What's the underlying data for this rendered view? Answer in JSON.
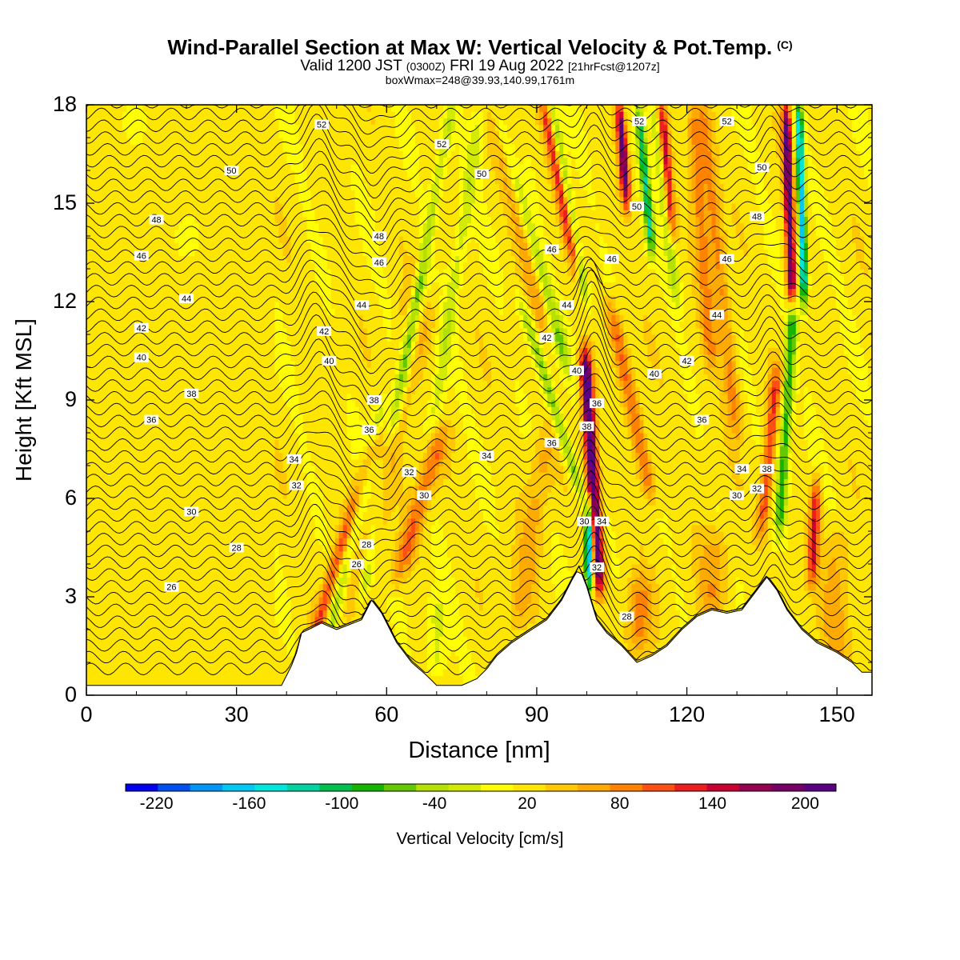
{
  "title": {
    "main": "Wind-Parallel Section at Max W: Vertical Velocity & Pot.Temp.",
    "copyright": "(C)",
    "valid_prefix": "Valid 1200 JST",
    "valid_utc": "(0300Z)",
    "valid_date": "FRI 19 Aug 2022",
    "forecast": "[21hrFcst@1207z]",
    "box_info": "boxWmax=248@39.93,140.99,1761m"
  },
  "colors": {
    "bins": [
      "#0000ee",
      "#0050f0",
      "#0096f5",
      "#00c8f5",
      "#00e6dc",
      "#00d2a0",
      "#00c050",
      "#14b400",
      "#64c800",
      "#b4e100",
      "#d2eb00",
      "#ffff00",
      "#ffe600",
      "#ffc800",
      "#ffaa00",
      "#ff8200",
      "#ff5014",
      "#ee1e1e",
      "#c80032",
      "#960050",
      "#780064",
      "#5a0082"
    ],
    "terrain": "#ffffff"
  },
  "chart_data": {
    "type": "heatmap",
    "xlabel": "Distance [nm]",
    "ylabel": "Height [Kft MSL]",
    "xlim": [
      0,
      157
    ],
    "ylim": [
      0,
      18
    ],
    "xticks": [
      0,
      30,
      60,
      90,
      120,
      150
    ],
    "yticks": [
      0,
      3,
      6,
      9,
      12,
      15,
      18
    ],
    "colorbar": {
      "title": "Vertical Velocity [cm/s]",
      "range": [
        -240,
        220
      ],
      "step": 20,
      "tick_values": [
        -220,
        -160,
        -100,
        -40,
        20,
        80,
        140,
        200
      ],
      "tick_labels": [
        "-220",
        "-160",
        "-100",
        "-40",
        "20",
        "80",
        "140",
        "200"
      ]
    },
    "terrain": {
      "x": [
        0,
        39,
        40,
        41,
        42,
        43,
        47,
        50,
        55,
        57,
        59,
        62,
        65,
        68,
        70,
        72,
        75,
        78,
        80,
        82,
        85,
        88,
        92,
        95,
        97,
        98.5,
        100,
        101,
        102,
        104,
        107,
        110,
        113,
        116,
        119,
        122,
        125,
        128,
        131,
        134,
        136,
        138,
        140,
        143,
        146,
        150,
        153,
        155,
        157
      ],
      "z": [
        0.3,
        0.3,
        0.6,
        0.9,
        1.3,
        1.9,
        2.2,
        2.0,
        2.3,
        2.9,
        2.5,
        1.6,
        1.0,
        0.6,
        0.3,
        0.3,
        0.3,
        0.5,
        0.8,
        1.2,
        1.6,
        1.9,
        2.3,
        2.9,
        3.5,
        3.9,
        3.3,
        2.8,
        2.3,
        1.9,
        1.5,
        1.0,
        1.2,
        1.5,
        2.0,
        2.4,
        2.6,
        2.5,
        2.6,
        3.2,
        3.6,
        3.2,
        2.6,
        2.0,
        1.6,
        1.3,
        1.0,
        0.7,
        0.7
      ]
    },
    "plumes": [
      {
        "x0": 44,
        "slope": 2.0,
        "amp": 90,
        "width": 1.5,
        "zmin": 1.0,
        "zmax": 8.0
      },
      {
        "x0": 48,
        "slope": 1.5,
        "amp": -60,
        "width": 1.5,
        "zmin": 1.5,
        "zmax": 9.0
      },
      {
        "x0": 51,
        "slope": 1.8,
        "amp": 30,
        "width": 2.0,
        "zmin": 2.0,
        "zmax": 12.0
      },
      {
        "x0": 55,
        "slope": 1.2,
        "amp": -70,
        "width": 1.5,
        "zmin": 3.0,
        "zmax": 13.0
      },
      {
        "x0": 57,
        "slope": 1.0,
        "amp": 50,
        "width": 1.8,
        "zmin": 4.0,
        "zmax": 13.0
      },
      {
        "x0": 62,
        "slope": 2.0,
        "amp": 70,
        "width": 2.0,
        "zmin": 3.5,
        "zmax": 8.0
      },
      {
        "x0": 61,
        "slope": 1.2,
        "amp": -50,
        "width": 1.2,
        "zmin": 8.0,
        "zmax": 18.0
      },
      {
        "x0": 69,
        "slope": 1.0,
        "amp": -40,
        "width": 1.5,
        "zmin": 8.0,
        "zmax": 18.0
      },
      {
        "x0": 86,
        "slope": 1.0,
        "amp": 40,
        "width": 2.5,
        "zmin": 2.0,
        "zmax": 8.0
      },
      {
        "x0": 100.5,
        "slope": 0.0,
        "amp": -220,
        "width": 0.9,
        "zmin": 3.3,
        "zmax": 5.8
      },
      {
        "x0": 102.5,
        "slope": -0.4,
        "amp": 210,
        "width": 1.2,
        "zmin": 3.3,
        "zmax": 10.5
      },
      {
        "x0": 99,
        "slope": -2.0,
        "amp": -80,
        "width": 1.2,
        "zmin": 6.0,
        "zmax": 12.0
      },
      {
        "x0": 96,
        "slope": -1.8,
        "amp": -70,
        "width": 1.4,
        "zmin": 10.0,
        "zmax": 18.0
      },
      {
        "x0": 92,
        "slope": -1.5,
        "amp": 50,
        "width": 2.0,
        "zmin": 11.0,
        "zmax": 18.0
      },
      {
        "x0": 98,
        "slope": -1.3,
        "amp": 110,
        "width": 1.2,
        "zmin": 13.0,
        "zmax": 18.0
      },
      {
        "x0": 100,
        "slope": -1.2,
        "amp": -90,
        "width": 1.0,
        "zmin": 12.0,
        "zmax": 18.0
      },
      {
        "x0": 108,
        "slope": -0.5,
        "amp": 180,
        "width": 0.9,
        "zmin": 15.0,
        "zmax": 18.0
      },
      {
        "x0": 113,
        "slope": -0.6,
        "amp": -120,
        "width": 0.9,
        "zmin": 13.5,
        "zmax": 18.0
      },
      {
        "x0": 113,
        "slope": -1.4,
        "amp": 80,
        "width": 1.5,
        "zmin": 6.0,
        "zmax": 12.0
      },
      {
        "x0": 117,
        "slope": -0.5,
        "amp": 120,
        "width": 0.9,
        "zmin": 14.0,
        "zmax": 18.0
      },
      {
        "x0": 118,
        "slope": -0.8,
        "amp": -60,
        "width": 1.0,
        "zmin": 12.0,
        "zmax": 18.0
      },
      {
        "x0": 125,
        "slope": -0.5,
        "amp": 60,
        "width": 1.5,
        "zmin": 10.0,
        "zmax": 18.0
      },
      {
        "x0": 130,
        "slope": -0.7,
        "amp": 60,
        "width": 1.5,
        "zmin": 8.0,
        "zmax": 18.0
      },
      {
        "x0": 138.5,
        "slope": 0.4,
        "amp": -100,
        "width": 1.1,
        "zmin": 5.0,
        "zmax": 12.0
      },
      {
        "x0": 141,
        "slope": -0.2,
        "amp": 180,
        "width": 0.9,
        "zmin": 12.0,
        "zmax": 18.0
      },
      {
        "x0": 143.5,
        "slope": -0.2,
        "amp": -180,
        "width": 0.8,
        "zmin": 12.0,
        "zmax": 18.0
      },
      {
        "x0": 145,
        "slope": 0.3,
        "amp": 110,
        "width": 1.0,
        "zmin": 3.5,
        "zmax": 6.5
      },
      {
        "x0": 135,
        "slope": 0.6,
        "amp": 90,
        "width": 1.2,
        "zmin": 5.0,
        "zmax": 10.0
      },
      {
        "x0": 70,
        "slope": 0.0,
        "amp": -40,
        "width": 2.0,
        "zmin": 0.5,
        "zmax": 3.0
      },
      {
        "x0": 110,
        "slope": 0.3,
        "amp": 60,
        "width": 2.5,
        "zmin": 1.2,
        "zmax": 3.5
      },
      {
        "x0": 125,
        "slope": 0.3,
        "amp": 50,
        "width": 3.0,
        "zmin": 2.5,
        "zmax": 5.0
      },
      {
        "x0": 150,
        "slope": 0.0,
        "amp": 40,
        "width": 3.0,
        "zmin": 1.0,
        "zmax": 5.0
      }
    ],
    "contour_labels": [
      {
        "text": "52",
        "x": 47,
        "z": 17.4
      },
      {
        "text": "52",
        "x": 71,
        "z": 16.8
      },
      {
        "text": "52",
        "x": 110.5,
        "z": 17.5
      },
      {
        "text": "52",
        "x": 128,
        "z": 17.5
      },
      {
        "text": "50",
        "x": 29,
        "z": 16.0
      },
      {
        "text": "50",
        "x": 79,
        "z": 15.9
      },
      {
        "text": "50",
        "x": 110,
        "z": 14.9
      },
      {
        "text": "50",
        "x": 135,
        "z": 16.1
      },
      {
        "text": "48",
        "x": 14,
        "z": 14.5
      },
      {
        "text": "48",
        "x": 58.5,
        "z": 14.0
      },
      {
        "text": "48",
        "x": 134,
        "z": 14.6
      },
      {
        "text": "46",
        "x": 11,
        "z": 13.4
      },
      {
        "text": "46",
        "x": 58.5,
        "z": 13.2
      },
      {
        "text": "46",
        "x": 93,
        "z": 13.6
      },
      {
        "text": "46",
        "x": 105,
        "z": 13.3
      },
      {
        "text": "46",
        "x": 128,
        "z": 13.3
      },
      {
        "text": "44",
        "x": 20,
        "z": 12.1
      },
      {
        "text": "44",
        "x": 55,
        "z": 11.9
      },
      {
        "text": "44",
        "x": 96,
        "z": 11.9
      },
      {
        "text": "44",
        "x": 126,
        "z": 11.6
      },
      {
        "text": "42",
        "x": 11,
        "z": 11.2
      },
      {
        "text": "42",
        "x": 47.5,
        "z": 11.1
      },
      {
        "text": "42",
        "x": 92,
        "z": 10.9
      },
      {
        "text": "42",
        "x": 120,
        "z": 10.2
      },
      {
        "text": "40",
        "x": 11,
        "z": 10.3
      },
      {
        "text": "40",
        "x": 48.5,
        "z": 10.2
      },
      {
        "text": "40",
        "x": 98,
        "z": 9.9
      },
      {
        "text": "40",
        "x": 113.5,
        "z": 9.8
      },
      {
        "text": "38",
        "x": 21,
        "z": 9.2
      },
      {
        "text": "38",
        "x": 57.5,
        "z": 9.0
      },
      {
        "text": "38",
        "x": 100,
        "z": 8.2
      },
      {
        "text": "38",
        "x": 136,
        "z": 6.9
      },
      {
        "text": "36",
        "x": 13,
        "z": 8.4
      },
      {
        "text": "36",
        "x": 56.5,
        "z": 8.1
      },
      {
        "text": "36",
        "x": 102,
        "z": 8.9
      },
      {
        "text": "36",
        "x": 93,
        "z": 7.7
      },
      {
        "text": "36",
        "x": 123,
        "z": 8.4
      },
      {
        "text": "34",
        "x": 41.5,
        "z": 7.2
      },
      {
        "text": "34",
        "x": 80,
        "z": 7.3
      },
      {
        "text": "34",
        "x": 131,
        "z": 6.9
      },
      {
        "text": "34",
        "x": 103,
        "z": 5.3
      },
      {
        "text": "32",
        "x": 42,
        "z": 6.4
      },
      {
        "text": "32",
        "x": 64.5,
        "z": 6.8
      },
      {
        "text": "32",
        "x": 134,
        "z": 6.3
      },
      {
        "text": "32",
        "x": 102,
        "z": 3.9
      },
      {
        "text": "30",
        "x": 21,
        "z": 5.6
      },
      {
        "text": "30",
        "x": 67.5,
        "z": 6.1
      },
      {
        "text": "30",
        "x": 130,
        "z": 6.1
      },
      {
        "text": "30",
        "x": 99.5,
        "z": 5.3
      },
      {
        "text": "28",
        "x": 30,
        "z": 4.5
      },
      {
        "text": "28",
        "x": 56,
        "z": 4.6
      },
      {
        "text": "28",
        "x": 108,
        "z": 2.4
      },
      {
        "text": "26",
        "x": 17,
        "z": 3.3
      },
      {
        "text": "26",
        "x": 54,
        "z": 4.0
      }
    ]
  }
}
